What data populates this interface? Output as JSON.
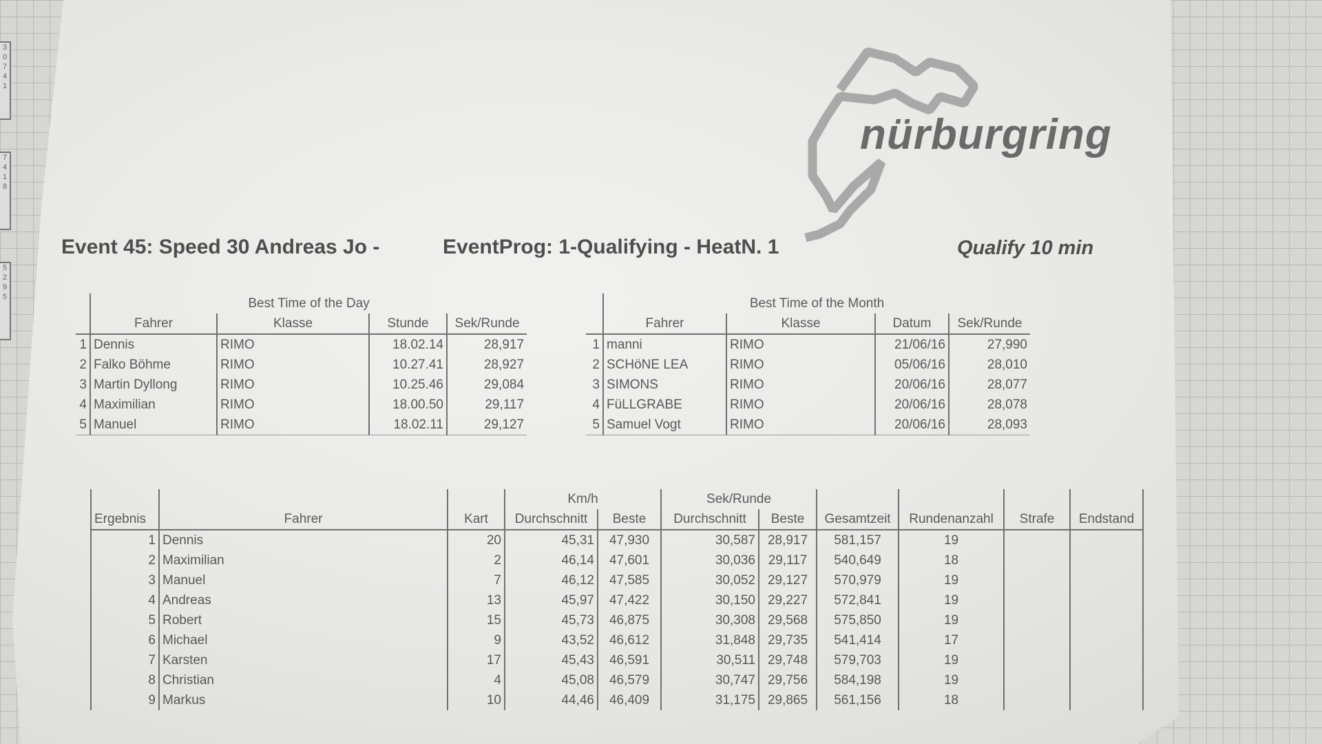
{
  "logo": {
    "text": "nürburgring",
    "icon": "nordschleife-track-logo"
  },
  "header": {
    "event": "Event 45: Speed 30 Andreas Jo -",
    "program": "EventProg: 1-Qualifying - HeatN. 1",
    "qualify": "Qualify 10 min"
  },
  "best_day": {
    "title": "Best Time of the Day",
    "columns": [
      "Fahrer",
      "Klasse",
      "Stunde",
      "Sek/Runde"
    ],
    "rows": [
      [
        "1",
        "Dennis",
        "RIMO",
        "18.02.14",
        "28,917"
      ],
      [
        "2",
        "Falko Böhme",
        "RIMO",
        "10.27.41",
        "28,927"
      ],
      [
        "3",
        "Martin Dyllong",
        "RIMO",
        "10.25.46",
        "29,084"
      ],
      [
        "4",
        "Maximilian",
        "RIMO",
        "18.00.50",
        "29,117"
      ],
      [
        "5",
        "Manuel",
        "RIMO",
        "18.02.11",
        "29,127"
      ]
    ]
  },
  "best_month": {
    "title": "Best Time of the Month",
    "columns": [
      "Fahrer",
      "Klasse",
      "Datum",
      "Sek/Runde"
    ],
    "rows": [
      [
        "1",
        "manni",
        "RIMO",
        "21/06/16",
        "27,990"
      ],
      [
        "2",
        "SCHöNE LEA",
        "RIMO",
        "05/06/16",
        "28,010"
      ],
      [
        "3",
        "SIMONS",
        "RIMO",
        "20/06/16",
        "28,077"
      ],
      [
        "4",
        "FüLLGRABE",
        "RIMO",
        "20/06/16",
        "28,078"
      ],
      [
        "5",
        "Samuel Vogt",
        "RIMO",
        "20/06/16",
        "28,093"
      ]
    ]
  },
  "results": {
    "groups": {
      "kmh": "Km/h",
      "sek": "Sek/Runde"
    },
    "columns": [
      "Ergebnis",
      "Fahrer",
      "Kart",
      "Durchschnitt",
      "Beste",
      "Durchschnitt",
      "Beste",
      "Gesamtzeit",
      "Rundenanzahl",
      "Strafe",
      "Endstand"
    ],
    "rows": [
      [
        "1",
        "Dennis",
        "20",
        "45,31",
        "47,930",
        "30,587",
        "28,917",
        "581,157",
        "19",
        "",
        ""
      ],
      [
        "2",
        "Maximilian",
        "2",
        "46,14",
        "47,601",
        "30,036",
        "29,117",
        "540,649",
        "18",
        "",
        ""
      ],
      [
        "3",
        "Manuel",
        "7",
        "46,12",
        "47,585",
        "30,052",
        "29,127",
        "570,979",
        "19",
        "",
        ""
      ],
      [
        "4",
        "Andreas",
        "13",
        "45,97",
        "47,422",
        "30,150",
        "29,227",
        "572,841",
        "19",
        "",
        ""
      ],
      [
        "5",
        "Robert",
        "15",
        "45,73",
        "46,875",
        "30,308",
        "29,568",
        "575,850",
        "19",
        "",
        ""
      ],
      [
        "6",
        "Michael",
        "9",
        "43,52",
        "46,612",
        "31,848",
        "29,735",
        "541,414",
        "17",
        "",
        ""
      ],
      [
        "7",
        "Karsten",
        "17",
        "45,43",
        "46,591",
        "30,511",
        "29,748",
        "579,703",
        "19",
        "",
        ""
      ],
      [
        "8",
        "Christian",
        "4",
        "45,08",
        "46,579",
        "30,747",
        "29,756",
        "584,198",
        "19",
        "",
        ""
      ],
      [
        "9",
        "Markus",
        "10",
        "44,46",
        "46,409",
        "31,175",
        "29,865",
        "561,156",
        "18",
        "",
        ""
      ]
    ]
  },
  "background_strip": {
    "numbers": [
      [
        "3",
        "0",
        "7",
        "4",
        "1"
      ],
      [
        "7",
        "4",
        "1",
        "8"
      ],
      [
        "5",
        "2",
        "9",
        "5"
      ]
    ]
  }
}
